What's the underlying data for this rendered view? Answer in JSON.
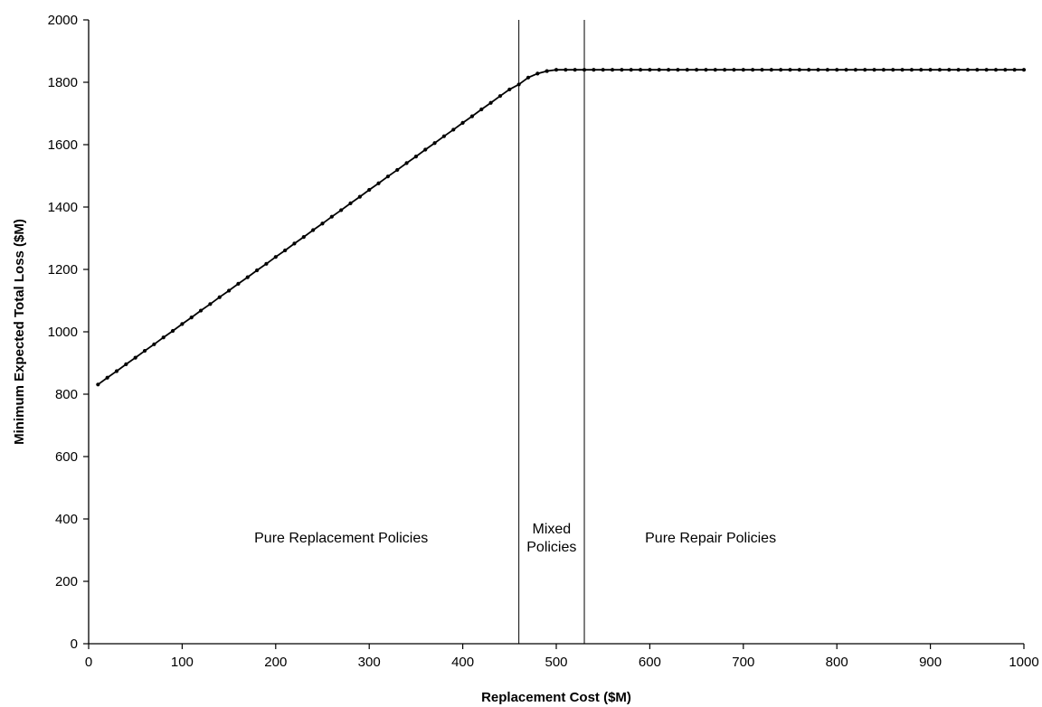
{
  "chart_data": {
    "type": "line",
    "xlabel": "Replacement Cost ($M)",
    "ylabel": "Minimum Expected Total Loss ($M)",
    "xlim": [
      0,
      1000
    ],
    "ylim": [
      0,
      2000
    ],
    "xticks": [
      0,
      100,
      200,
      300,
      400,
      500,
      600,
      700,
      800,
      900,
      1000
    ],
    "yticks": [
      0,
      200,
      400,
      600,
      800,
      1000,
      1200,
      1400,
      1600,
      1800,
      2000
    ],
    "grid": false,
    "legend": "none",
    "series": [
      {
        "x": [
          10,
          20,
          30,
          40,
          50,
          60,
          70,
          80,
          90,
          100,
          110,
          120,
          130,
          140,
          150,
          160,
          170,
          180,
          190,
          200,
          210,
          220,
          230,
          240,
          250,
          260,
          270,
          280,
          290,
          300,
          310,
          320,
          330,
          340,
          350,
          360,
          370,
          380,
          390,
          400,
          410,
          420,
          430,
          440,
          450,
          460,
          470,
          480,
          490,
          500,
          510,
          520,
          530,
          540,
          550,
          560,
          570,
          580,
          590,
          600,
          610,
          620,
          630,
          640,
          650,
          660,
          670,
          680,
          690,
          700,
          710,
          720,
          730,
          740,
          750,
          760,
          770,
          780,
          790,
          800,
          810,
          820,
          830,
          840,
          850,
          860,
          870,
          880,
          890,
          900,
          910,
          920,
          930,
          940,
          950,
          960,
          970,
          980,
          990,
          1000
        ],
        "values": [
          831,
          853,
          874,
          896,
          917,
          939,
          960,
          982,
          1003,
          1025,
          1046,
          1068,
          1089,
          1111,
          1132,
          1154,
          1175,
          1197,
          1218,
          1240,
          1261,
          1283,
          1304,
          1326,
          1347,
          1369,
          1390,
          1412,
          1433,
          1455,
          1476,
          1498,
          1519,
          1541,
          1562,
          1584,
          1605,
          1627,
          1648,
          1670,
          1691,
          1713,
          1734,
          1756,
          1777,
          1793,
          1815,
          1828,
          1836,
          1840,
          1840,
          1840,
          1840,
          1840,
          1840,
          1840,
          1840,
          1840,
          1840,
          1840,
          1840,
          1840,
          1840,
          1840,
          1840,
          1840,
          1840,
          1840,
          1840,
          1840,
          1840,
          1840,
          1840,
          1840,
          1840,
          1840,
          1840,
          1840,
          1840,
          1840,
          1840,
          1840,
          1840,
          1840,
          1840,
          1840,
          1840,
          1840,
          1840,
          1840,
          1840,
          1840,
          1840,
          1840,
          1840,
          1840,
          1840,
          1840,
          1840,
          1840
        ]
      }
    ],
    "vlines": [
      460,
      530
    ],
    "annotations": [
      {
        "lines": [
          "Pure Replacement Policies"
        ],
        "x": 270,
        "y": 325
      },
      {
        "lines": [
          "Mixed",
          "Policies"
        ],
        "x": 495,
        "y": 325
      },
      {
        "lines": [
          "Pure Repair Policies"
        ],
        "x": 665,
        "y": 325
      }
    ]
  }
}
